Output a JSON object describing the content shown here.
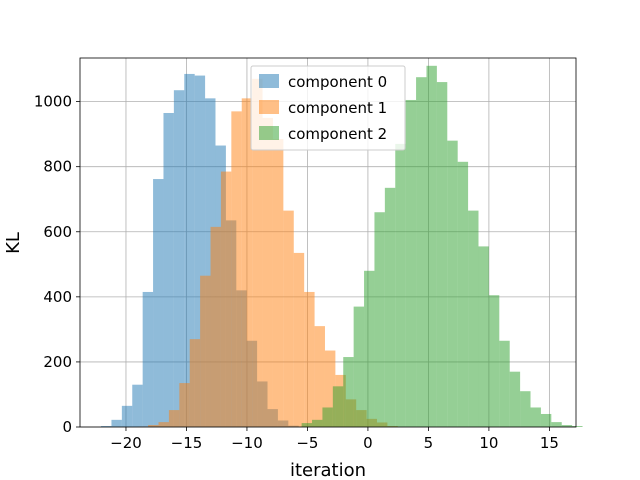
{
  "chart_data": {
    "type": "histogram",
    "xlabel": "iteration",
    "ylabel": "KL",
    "xlim": [
      -23.8,
      17.2
    ],
    "ylim": [
      0,
      1134
    ],
    "xticks": [
      -20,
      -15,
      -10,
      -5,
      0,
      5,
      10,
      15
    ],
    "xtick_labels": [
      "−20",
      "−15",
      "−10",
      "−5",
      "0",
      "5",
      "10",
      "15"
    ],
    "yticks": [
      0,
      200,
      400,
      600,
      800,
      1000
    ],
    "ytick_labels": [
      "0",
      "200",
      "400",
      "600",
      "800",
      "1000"
    ],
    "grid": true,
    "legend_position": "top-center",
    "alpha": 0.5,
    "series": [
      {
        "name": "component 0",
        "color": "#1f77b4",
        "bin_start": -22.06,
        "bin_width": 0.86,
        "counts": [
          3,
          22,
          65,
          130,
          415,
          762,
          965,
          1035,
          1085,
          1080,
          1010,
          865,
          635,
          420,
          265,
          140,
          55,
          20,
          4,
          1
        ]
      },
      {
        "name": "component 1",
        "color": "#ff7f0e",
        "bin_start": -19.03,
        "bin_width": 0.86,
        "counts": [
          1,
          6,
          15,
          52,
          135,
          270,
          465,
          615,
          785,
          970,
          1010,
          1070,
          950,
          885,
          665,
          535,
          415,
          310,
          235,
          160,
          85,
          52,
          25,
          14,
          3
        ]
      },
      {
        "name": "component 2",
        "color": "#2ca02c",
        "bin_start": -5.48,
        "bin_width": 0.86,
        "counts": [
          12,
          22,
          60,
          125,
          215,
          370,
          480,
          660,
          735,
          870,
          1005,
          1075,
          1110,
          1060,
          880,
          815,
          665,
          555,
          405,
          265,
          170,
          110,
          60,
          40,
          15,
          6,
          3
        ]
      }
    ]
  }
}
